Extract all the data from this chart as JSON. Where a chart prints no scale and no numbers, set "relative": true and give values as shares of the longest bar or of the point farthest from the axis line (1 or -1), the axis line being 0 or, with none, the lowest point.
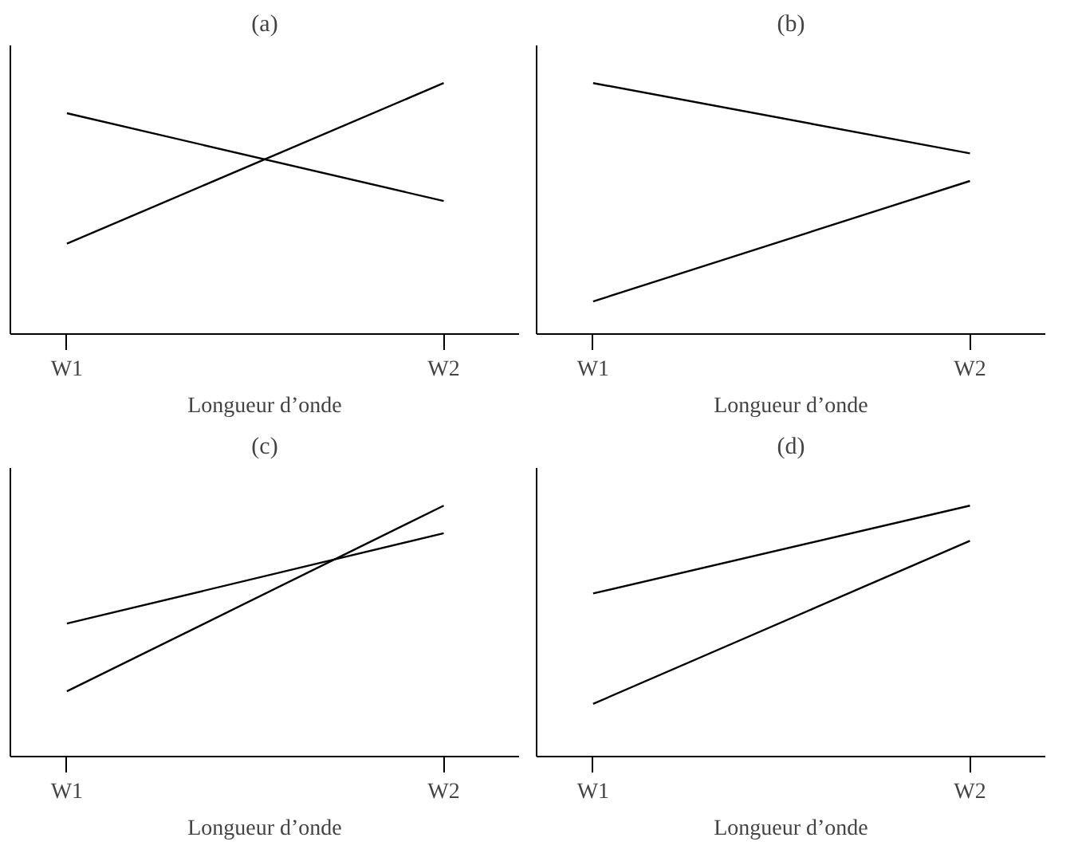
{
  "chart_data": [
    {
      "type": "line",
      "title": "(a)",
      "xlabel": "Longueur d’onde",
      "categories": [
        "W1",
        "W2"
      ],
      "relative": true,
      "series": [
        {
          "color": "#000000",
          "values": [
            0.36,
            1
          ]
        },
        {
          "color": "#000000",
          "values": [
            0.88,
            0.53
          ]
        }
      ]
    },
    {
      "type": "line",
      "title": "(b)",
      "xlabel": "Longueur d’onde",
      "categories": [
        "W1",
        "W2"
      ],
      "relative": true,
      "series": [
        {
          "color": "#000000",
          "values": [
            1,
            0.72
          ]
        },
        {
          "color": "#000000",
          "values": [
            0.13,
            0.61
          ]
        }
      ]
    },
    {
      "type": "line",
      "title": "(c)",
      "xlabel": "Longueur d’onde",
      "categories": [
        "W1",
        "W2"
      ],
      "relative": true,
      "series": [
        {
          "color": "#000000",
          "values": [
            0.53,
            0.89
          ]
        },
        {
          "color": "#000000",
          "values": [
            0.26,
            1
          ]
        }
      ]
    },
    {
      "type": "line",
      "title": "(d)",
      "xlabel": "Longueur d’onde",
      "categories": [
        "W1",
        "W2"
      ],
      "relative": true,
      "series": [
        {
          "color": "#000000",
          "values": [
            0.65,
            1
          ]
        },
        {
          "color": "#000000",
          "values": [
            0.21,
            0.86
          ]
        }
      ]
    }
  ]
}
